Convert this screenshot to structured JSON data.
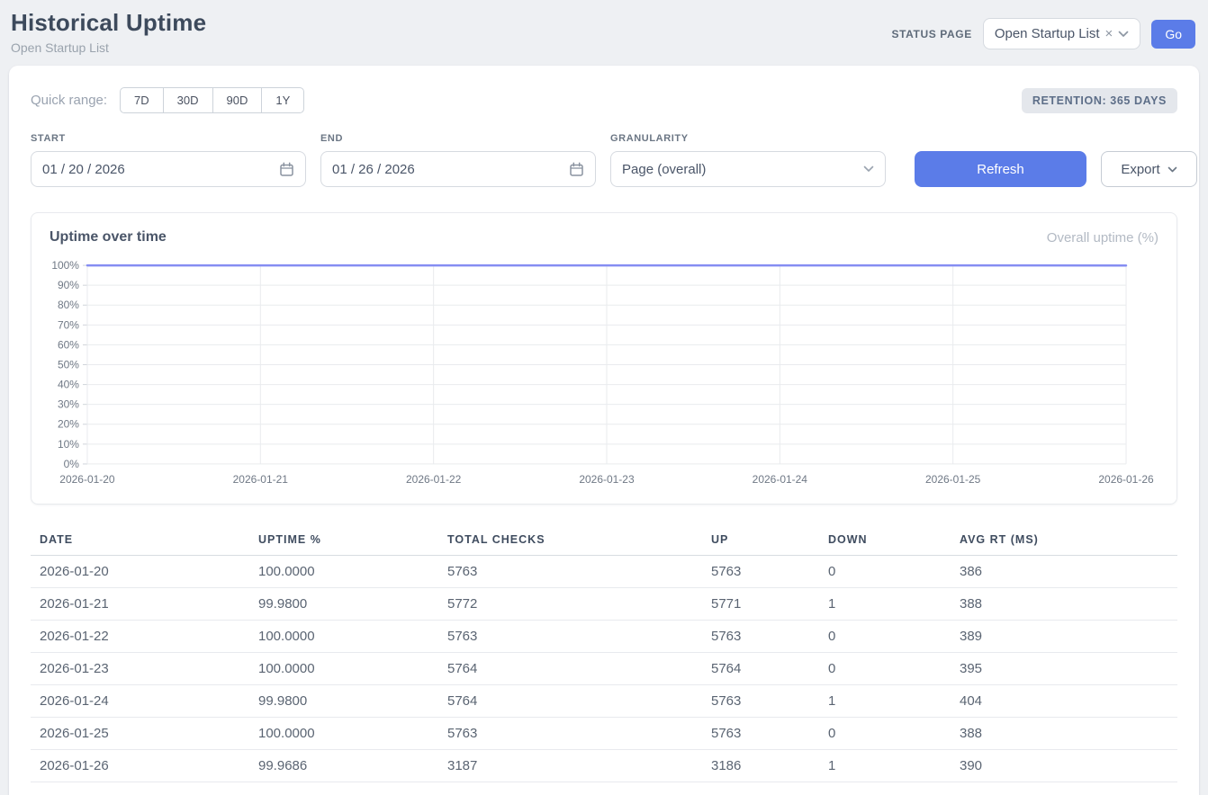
{
  "header": {
    "title": "Historical Uptime",
    "subtitle": "Open Startup List",
    "status_page_label": "STATUS PAGE",
    "status_page_value": "Open Startup List",
    "status_page_clear": "×",
    "go_label": "Go"
  },
  "filters": {
    "quick_range_label": "Quick range:",
    "quick_ranges": [
      "7D",
      "30D",
      "90D",
      "1Y"
    ],
    "retention_badge": "RETENTION: 365 DAYS",
    "start_label": "START",
    "start_value": "01 / 20 / 2026",
    "end_label": "END",
    "end_value": "01 / 26 / 2026",
    "granularity_label": "GRANULARITY",
    "granularity_value": "Page (overall)",
    "refresh_label": "Refresh",
    "export_label": "Export"
  },
  "chart_data": {
    "type": "line",
    "title": "Uptime over time",
    "legend": "Overall uptime (%)",
    "legend_position": "top-right",
    "x": [
      "2026-01-20",
      "2026-01-21",
      "2026-01-22",
      "2026-01-23",
      "2026-01-24",
      "2026-01-25",
      "2026-01-26"
    ],
    "series": [
      {
        "name": "Overall uptime (%)",
        "values": [
          100.0,
          99.98,
          100.0,
          100.0,
          99.98,
          100.0,
          99.9686
        ]
      }
    ],
    "ylim": [
      0,
      100
    ],
    "y_tick_step": 10,
    "y_tick_suffix": "%",
    "grid": true,
    "line_color": "#858df2"
  },
  "table": {
    "columns": [
      "DATE",
      "UPTIME %",
      "TOTAL CHECKS",
      "UP",
      "DOWN",
      "AVG RT (MS)"
    ],
    "rows": [
      [
        "2026-01-20",
        "100.0000",
        "5763",
        "5763",
        "0",
        "386"
      ],
      [
        "2026-01-21",
        "99.9800",
        "5772",
        "5771",
        "1",
        "388"
      ],
      [
        "2026-01-22",
        "100.0000",
        "5763",
        "5763",
        "0",
        "389"
      ],
      [
        "2026-01-23",
        "100.0000",
        "5764",
        "5764",
        "0",
        "395"
      ],
      [
        "2026-01-24",
        "99.9800",
        "5764",
        "5763",
        "1",
        "404"
      ],
      [
        "2026-01-25",
        "100.0000",
        "5763",
        "5763",
        "0",
        "388"
      ],
      [
        "2026-01-26",
        "99.9686",
        "3187",
        "3186",
        "1",
        "390"
      ]
    ]
  },
  "colors": {
    "accent_blue": "#5b7ce8",
    "chart_line": "#858df2"
  }
}
